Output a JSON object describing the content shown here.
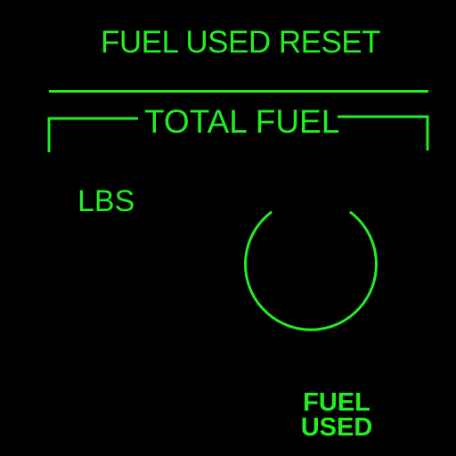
{
  "colors": {
    "background": "#000000",
    "foreground": "#22ee22"
  },
  "header": {
    "title": "FUEL USED RESET"
  },
  "section": {
    "label": "TOTAL FUEL"
  },
  "readout": {
    "units": "LBS"
  },
  "gauge": {
    "icon": "open-circle-icon",
    "label_line1": "FUEL",
    "label_line2": "USED"
  }
}
